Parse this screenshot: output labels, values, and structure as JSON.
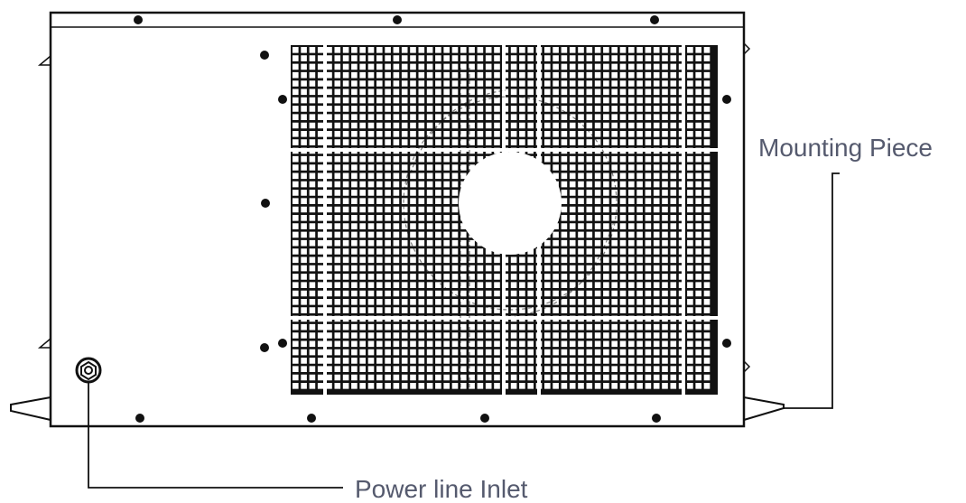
{
  "callouts": {
    "mounting_piece": "Mounting Piece",
    "power_line_inlet": "Power line Inlet"
  },
  "colors": {
    "line": "#111111",
    "label_text": "#555a6e",
    "background": "#ffffff"
  }
}
